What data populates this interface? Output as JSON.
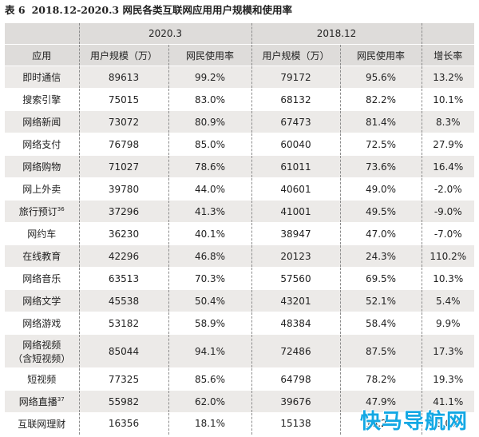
{
  "caption": {
    "number": "表 6",
    "title": "2018.12-2020.3 网民各类互联网应用用户规模和使用率"
  },
  "table": {
    "period_2020": "2020.3",
    "period_2018": "2018.12",
    "headers": {
      "app": "应用",
      "users_2020": "用户规模（万）",
      "rate_2020": "网民使用率",
      "users_2018": "用户规模（万）",
      "rate_2018": "网民使用率",
      "growth": "增长率"
    },
    "rows": [
      {
        "name": "即时通信",
        "sup": "",
        "users_2020": "89613",
        "rate_2020": "99.2%",
        "users_2018": "79172",
        "rate_2018": "95.6%",
        "growth": "13.2%"
      },
      {
        "name": "搜索引擎",
        "sup": "",
        "users_2020": "75015",
        "rate_2020": "83.0%",
        "users_2018": "68132",
        "rate_2018": "82.2%",
        "growth": "10.1%"
      },
      {
        "name": "网络新闻",
        "sup": "",
        "users_2020": "73072",
        "rate_2020": "80.9%",
        "users_2018": "67473",
        "rate_2018": "81.4%",
        "growth": "8.3%"
      },
      {
        "name": "网络支付",
        "sup": "",
        "users_2020": "76798",
        "rate_2020": "85.0%",
        "users_2018": "60040",
        "rate_2018": "72.5%",
        "growth": "27.9%"
      },
      {
        "name": "网络购物",
        "sup": "",
        "users_2020": "71027",
        "rate_2020": "78.6%",
        "users_2018": "61011",
        "rate_2018": "73.6%",
        "growth": "16.4%"
      },
      {
        "name": "网上外卖",
        "sup": "",
        "users_2020": "39780",
        "rate_2020": "44.0%",
        "users_2018": "40601",
        "rate_2018": "49.0%",
        "growth": "-2.0%"
      },
      {
        "name": "旅行预订",
        "sup": "36",
        "users_2020": "37296",
        "rate_2020": "41.3%",
        "users_2018": "41001",
        "rate_2018": "49.5%",
        "growth": "-9.0%"
      },
      {
        "name": "网约车",
        "sup": "",
        "users_2020": "36230",
        "rate_2020": "40.1%",
        "users_2018": "38947",
        "rate_2018": "47.0%",
        "growth": "-7.0%"
      },
      {
        "name": "在线教育",
        "sup": "",
        "users_2020": "42296",
        "rate_2020": "46.8%",
        "users_2018": "20123",
        "rate_2018": "24.3%",
        "growth": "110.2%"
      },
      {
        "name": "网络音乐",
        "sup": "",
        "users_2020": "63513",
        "rate_2020": "70.3%",
        "users_2018": "57560",
        "rate_2018": "69.5%",
        "growth": "10.3%"
      },
      {
        "name": "网络文学",
        "sup": "",
        "users_2020": "45538",
        "rate_2020": "50.4%",
        "users_2018": "43201",
        "rate_2018": "52.1%",
        "growth": "5.4%"
      },
      {
        "name": "网络游戏",
        "sup": "",
        "users_2020": "53182",
        "rate_2020": "58.9%",
        "users_2018": "48384",
        "rate_2018": "58.4%",
        "growth": "9.9%"
      },
      {
        "name": "网络视频",
        "name2": "（含短视频）",
        "sup": "",
        "users_2020": "85044",
        "rate_2020": "94.1%",
        "users_2018": "72486",
        "rate_2018": "87.5%",
        "growth": "17.3%"
      },
      {
        "name": "短视频",
        "sup": "",
        "users_2020": "77325",
        "rate_2020": "85.6%",
        "users_2018": "64798",
        "rate_2018": "78.2%",
        "growth": "19.3%"
      },
      {
        "name": "网络直播",
        "sup": "37",
        "users_2020": "55982",
        "rate_2020": "62.0%",
        "users_2018": "39676",
        "rate_2018": "47.9%",
        "growth": "41.1%"
      },
      {
        "name": "互联网理财",
        "sup": "",
        "users_2020": "16356",
        "rate_2020": "18.1%",
        "users_2018": "15138",
        "rate_2018": "18.2%",
        "growth": "8.0%"
      }
    ]
  },
  "watermark": "快马导航网"
}
